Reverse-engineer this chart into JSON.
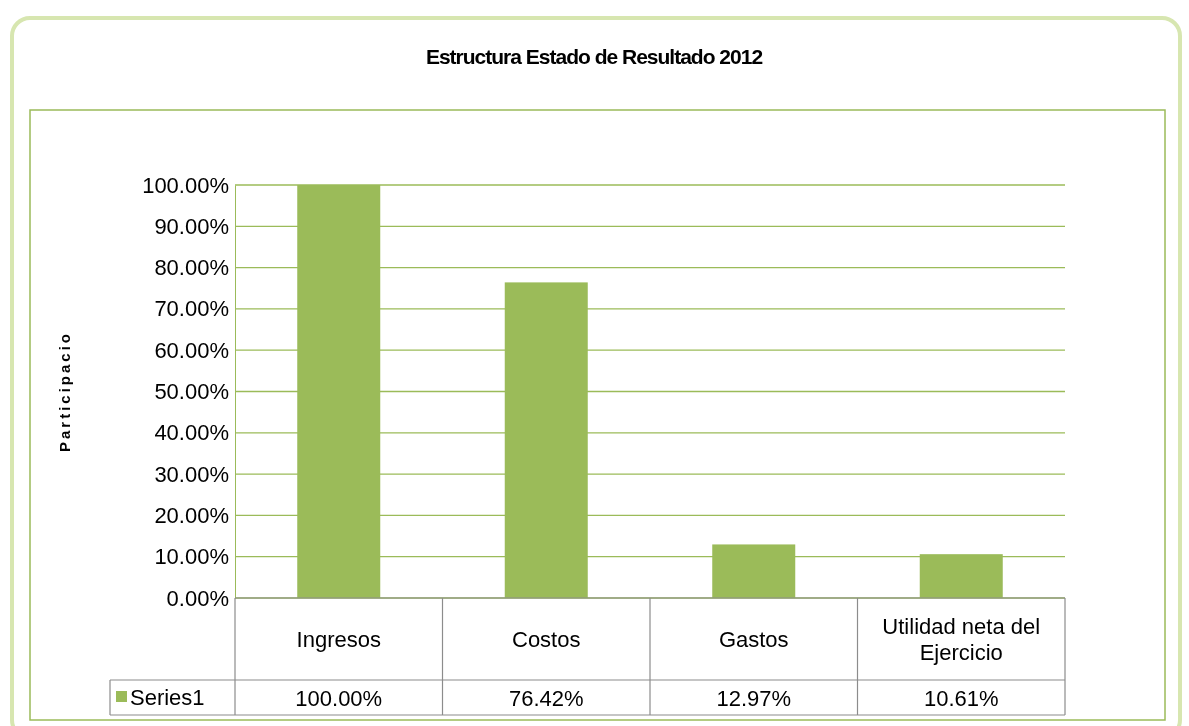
{
  "chart_data": {
    "type": "bar",
    "title": "Estructura Estado de Resultado 2012",
    "ylabel": "Participacio",
    "categories": [
      "Ingresos",
      "Costos",
      "Gastos",
      "Utilidad neta del Ejercicio"
    ],
    "series": [
      {
        "name": "Series1",
        "color": "#9bbb59",
        "values": [
          100,
          76.42,
          12.97,
          10.61
        ],
        "value_labels": [
          "100.00%",
          "76.42%",
          "12.97%",
          "10.61%"
        ]
      }
    ],
    "ylim": [
      0,
      100
    ],
    "yticks": [
      {
        "value": 0,
        "label": "0.00%"
      },
      {
        "value": 10,
        "label": "10.00%"
      },
      {
        "value": 20,
        "label": "20.00%"
      },
      {
        "value": 30,
        "label": "30.00%"
      },
      {
        "value": 40,
        "label": "40.00%"
      },
      {
        "value": 50,
        "label": "50.00%"
      },
      {
        "value": 60,
        "label": "60.00%"
      },
      {
        "value": 70,
        "label": "70.00%"
      },
      {
        "value": 80,
        "label": "80.00%"
      },
      {
        "value": 90,
        "label": "90.00%"
      },
      {
        "value": 100,
        "label": "100.00%"
      }
    ],
    "grid": true,
    "legend": "bottom"
  }
}
